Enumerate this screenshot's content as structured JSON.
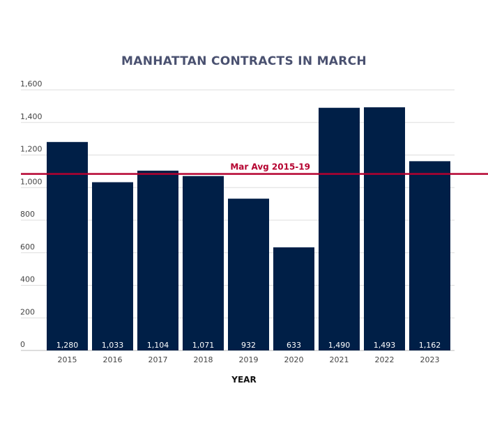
{
  "chart_data": {
    "type": "bar",
    "title": "MANHATTAN CONTRACTS IN MARCH",
    "xlabel": "YEAR",
    "ylabel": "",
    "categories": [
      "2015",
      "2016",
      "2017",
      "2018",
      "2019",
      "2020",
      "2021",
      "2022",
      "2023"
    ],
    "values": [
      1280,
      1033,
      1104,
      1071,
      932,
      633,
      1490,
      1493,
      1162
    ],
    "value_labels": [
      "1,280",
      "1,033",
      "1,104",
      "1,071",
      "932",
      "633",
      "1,490",
      "1,493",
      "1,162"
    ],
    "ylim": [
      0,
      1600
    ],
    "yticks": [
      0,
      200,
      400,
      600,
      800,
      1000,
      1200,
      1400,
      1600
    ],
    "ytick_labels": [
      "0",
      "200",
      "400",
      "600",
      "800",
      "1,000",
      "1,200",
      "1,400",
      "1,600"
    ],
    "grid": true,
    "bar_color": "#001f47",
    "reference_line": {
      "label": "Mar Avg 2015-19",
      "value": 1084,
      "color": "#b5002f"
    }
  }
}
